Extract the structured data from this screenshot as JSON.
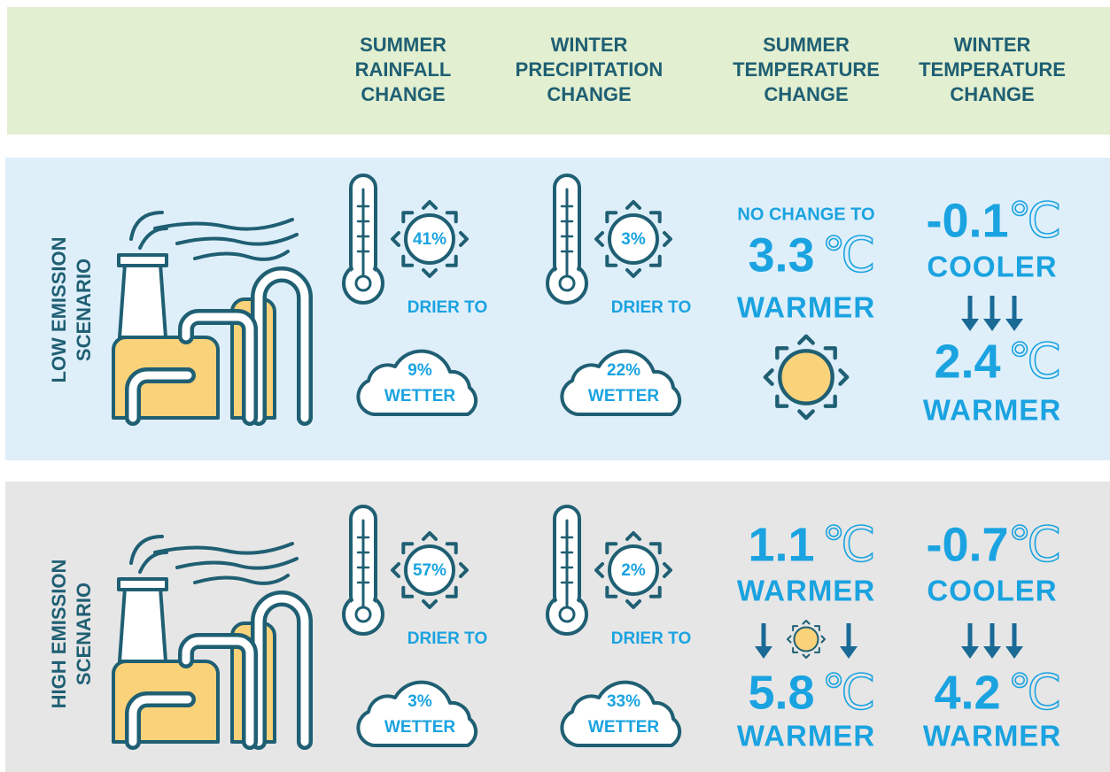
{
  "header": {
    "columns": [
      [
        "SUMMER",
        "RAINFALL",
        "CHANGE"
      ],
      [
        "WINTER",
        "PRECIPITATION",
        "CHANGE"
      ],
      [
        "SUMMER",
        "TEMPERATURE",
        "CHANGE"
      ],
      [
        "WINTER",
        "TEMPERATURE",
        "CHANGE"
      ]
    ]
  },
  "rows": [
    {
      "label": [
        "LOW EMISSION",
        "SCENARIO"
      ],
      "rain": [
        {
          "dry": "41%",
          "dry_label": "DRIER TO",
          "wet": "9%",
          "wet_label": "WETTER"
        },
        {
          "dry": "3%",
          "dry_label": "DRIER TO",
          "wet": "22%",
          "wet_label": "WETTER"
        }
      ],
      "summer_temp": {
        "note": "NO CHANGE TO",
        "bottom": "3.3",
        "bottom_unit": "℃",
        "bottom_label": "WARMER"
      },
      "winter_temp": {
        "top": "-0.1",
        "top_unit": "℃",
        "top_label": "COOLER",
        "bottom": "2.4",
        "bottom_unit": "℃",
        "bottom_label": "WARMER"
      }
    },
    {
      "label": [
        "HIGH EMISSION",
        "SCENARIO"
      ],
      "rain": [
        {
          "dry": "57%",
          "dry_label": "DRIER TO",
          "wet": "3%",
          "wet_label": "WETTER"
        },
        {
          "dry": "2%",
          "dry_label": "DRIER TO",
          "wet": "33%",
          "wet_label": "WETTER"
        }
      ],
      "summer_temp": {
        "top": "1.1",
        "top_unit": "℃",
        "top_label": "WARMER",
        "bottom": "5.8",
        "bottom_unit": "℃",
        "bottom_label": "WARMER"
      },
      "winter_temp": {
        "top": "-0.7",
        "top_unit": "℃",
        "top_label": "COOLER",
        "bottom": "4.2",
        "bottom_unit": "℃",
        "bottom_label": "WARMER"
      }
    }
  ]
}
